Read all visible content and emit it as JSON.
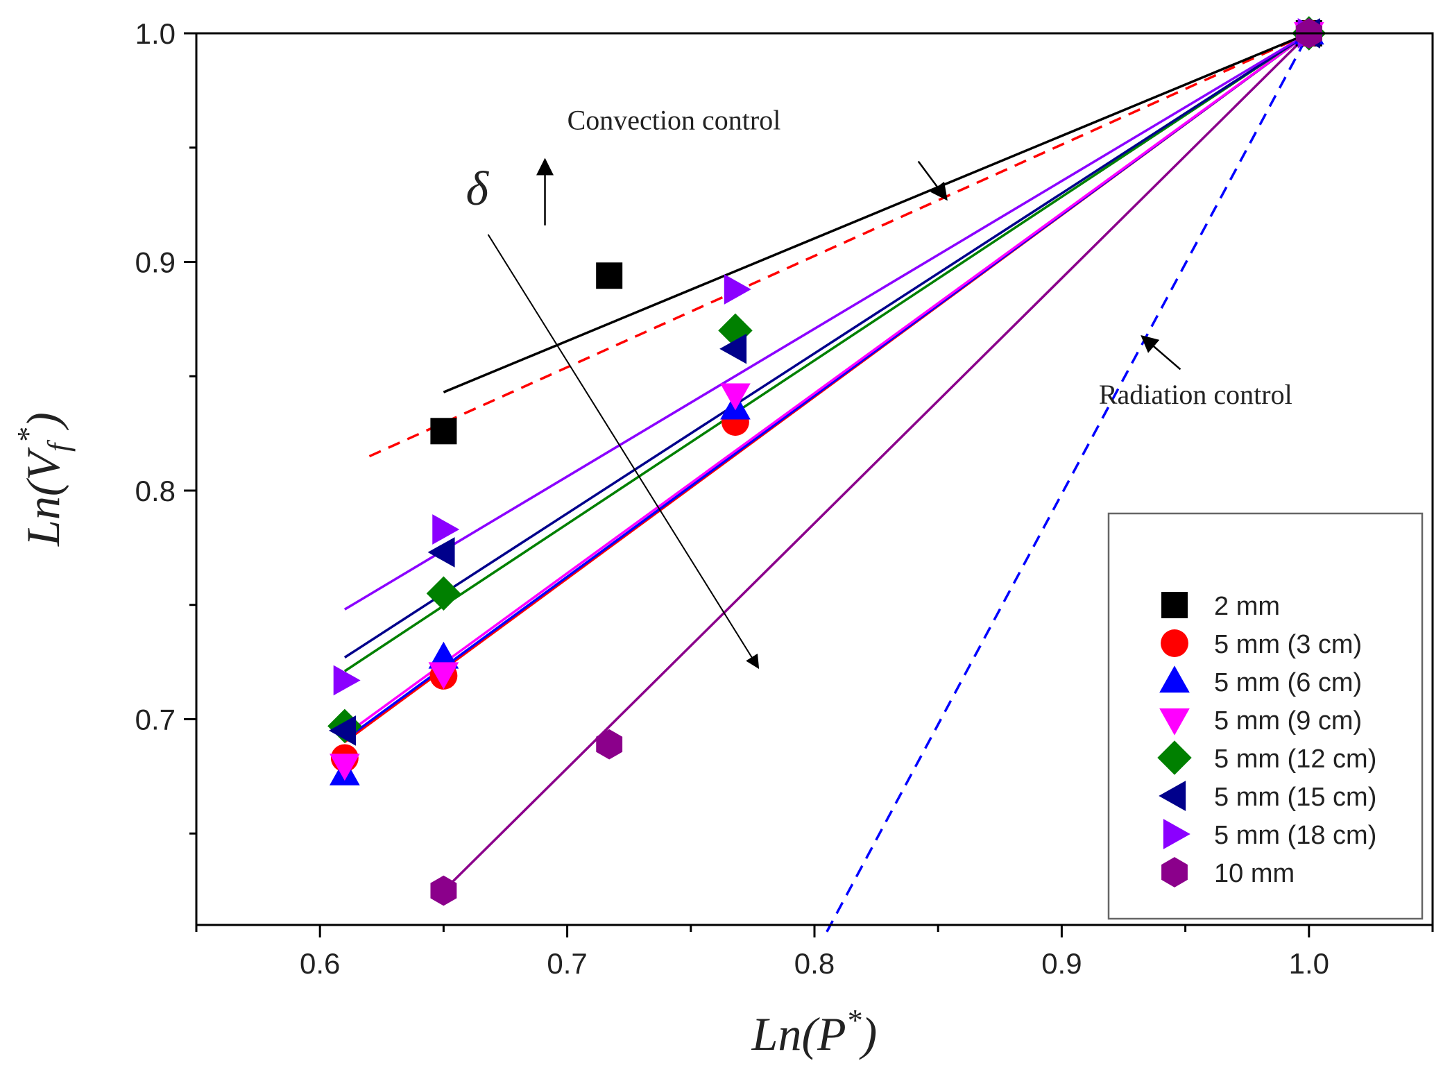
{
  "chart_data": {
    "type": "scatter",
    "xlabel_main": "Ln(P",
    "xlabel_sup": "*",
    "xlabel_close": ")",
    "ylabel_main": "Ln(V",
    "ylabel_sub": "f",
    "ylabel_sup": "*",
    "ylabel_close": ")",
    "xlim": [
      0.55,
      1.05
    ],
    "ylim": [
      0.61,
      1.0
    ],
    "x_ticks": [
      0.6,
      0.7,
      0.8,
      0.9,
      1.0
    ],
    "x_tick_labels": [
      "0.6",
      "0.7",
      "0.8",
      "0.9",
      "1.0"
    ],
    "y_ticks": [
      0.7,
      0.8,
      0.9,
      1.0
    ],
    "y_tick_labels": [
      "0.7",
      "0.8",
      "0.9",
      "1.0"
    ],
    "series": [
      {
        "name": "2 mm",
        "marker": "square",
        "color": "#000000",
        "points": [
          [
            0.65,
            0.826
          ],
          [
            0.717,
            0.894
          ],
          [
            1.0,
            1.0
          ]
        ],
        "fit": {
          "x1": 0.65,
          "y1": 0.843,
          "x2": 1.0,
          "y2": 1.0,
          "color": "#000000"
        }
      },
      {
        "name": "5 mm (3 cm)",
        "marker": "circle",
        "color": "#ff0000",
        "points": [
          [
            0.61,
            0.683
          ],
          [
            0.65,
            0.719
          ],
          [
            0.768,
            0.83
          ],
          [
            1.0,
            1.0
          ]
        ],
        "fit": {
          "x1": 0.61,
          "y1": 0.69,
          "x2": 1.0,
          "y2": 1.0,
          "color": "#ff0000"
        }
      },
      {
        "name": "5 mm (6 cm)",
        "marker": "triangle-up",
        "color": "#0000ff",
        "points": [
          [
            0.61,
            0.676
          ],
          [
            0.65,
            0.727
          ],
          [
            0.768,
            0.836
          ],
          [
            1.0,
            1.0
          ]
        ],
        "fit": {
          "x1": 0.61,
          "y1": 0.691,
          "x2": 1.0,
          "y2": 1.0,
          "color": "#0000ff"
        }
      },
      {
        "name": "5 mm (9 cm)",
        "marker": "triangle-down",
        "color": "#ff00ff",
        "points": [
          [
            0.61,
            0.68
          ],
          [
            0.65,
            0.72
          ],
          [
            0.768,
            0.842
          ],
          [
            1.0,
            1.0
          ]
        ],
        "fit": {
          "x1": 0.61,
          "y1": 0.693,
          "x2": 1.0,
          "y2": 1.0,
          "color": "#ff00ff"
        }
      },
      {
        "name": "5 mm (12 cm)",
        "marker": "diamond",
        "color": "#008000",
        "points": [
          [
            0.61,
            0.697
          ],
          [
            0.65,
            0.755
          ],
          [
            0.768,
            0.87
          ],
          [
            1.0,
            1.0
          ]
        ],
        "fit": {
          "x1": 0.61,
          "y1": 0.721,
          "x2": 1.0,
          "y2": 1.0,
          "color": "#008000"
        }
      },
      {
        "name": "5 mm (15 cm)",
        "marker": "triangle-left",
        "color": "#00008b",
        "points": [
          [
            0.61,
            0.695
          ],
          [
            0.65,
            0.773
          ],
          [
            0.768,
            0.862
          ],
          [
            1.0,
            1.0
          ]
        ],
        "fit": {
          "x1": 0.61,
          "y1": 0.727,
          "x2": 1.0,
          "y2": 1.0,
          "color": "#00008b"
        }
      },
      {
        "name": "5 mm (18 cm)",
        "marker": "triangle-right",
        "color": "#8b00ff",
        "points": [
          [
            0.61,
            0.717
          ],
          [
            0.65,
            0.783
          ],
          [
            0.768,
            0.888
          ],
          [
            1.0,
            1.0
          ]
        ],
        "fit": {
          "x1": 0.61,
          "y1": 0.748,
          "x2": 1.0,
          "y2": 1.0,
          "color": "#8b00ff"
        }
      },
      {
        "name": "10 mm",
        "marker": "hexagon",
        "color": "#8b008b",
        "points": [
          [
            0.65,
            0.625
          ],
          [
            0.717,
            0.689
          ],
          [
            1.0,
            1.0
          ]
        ],
        "fit": {
          "x1": 0.65,
          "y1": 0.625,
          "x2": 1.0,
          "y2": 1.0,
          "color": "#8b008b"
        }
      }
    ],
    "reference_lines": [
      {
        "name": "Convection control",
        "style": "dashed",
        "color": "#ff0000",
        "x1": 0.62,
        "y1": 0.815,
        "x2": 1.0,
        "y2": 1.0
      },
      {
        "name": "Radiation control",
        "style": "dashed",
        "color": "#0000ff",
        "x1": 0.805,
        "y1": 0.607,
        "x2": 1.0,
        "y2": 1.0
      }
    ],
    "annotations": {
      "convection_label": "Convection control",
      "radiation_label": "Radiation control",
      "delta_label": "δ"
    },
    "legend_position": "bottom-right"
  }
}
